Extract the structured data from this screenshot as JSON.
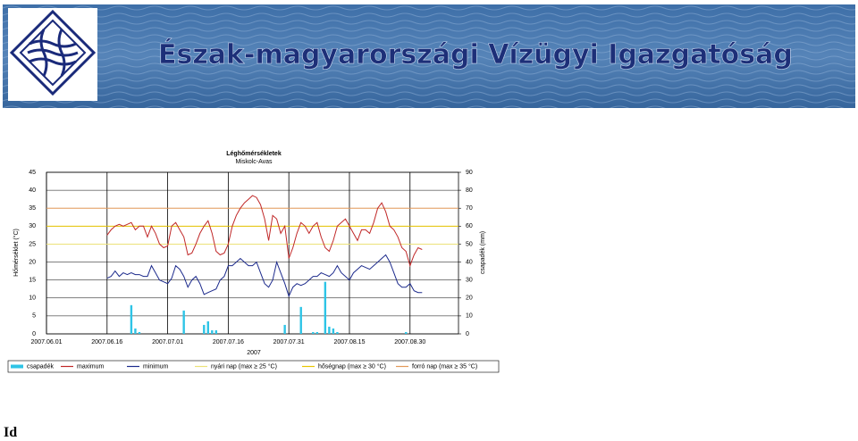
{
  "header": {
    "title": "Észak-magyarországi Vízügyi Igazgatóság"
  },
  "chart_data": {
    "type": "combo",
    "title": "Léghőmérsékletek",
    "subtitle": "Miskolc-Avas",
    "ylabel": "Hőmérséklet (°C)",
    "y2label": "csapadék (mm)",
    "xlabel": "2007",
    "xlim": [
      "2007.06.01",
      "2007.09.11"
    ],
    "xticks": [
      "2007.06.01",
      "2007.06.16",
      "2007.07.01",
      "2007.07.16",
      "2007.07.31",
      "2007.08.15",
      "2007.08.30"
    ],
    "ylim": [
      0,
      45
    ],
    "yticks": [
      0,
      5,
      10,
      15,
      20,
      25,
      30,
      35,
      40,
      45
    ],
    "y2lim": [
      0,
      90
    ],
    "y2ticks": [
      0,
      10,
      20,
      30,
      40,
      50,
      60,
      70,
      80,
      90
    ],
    "grid": true,
    "series": [
      {
        "name": "csapadék",
        "color": "#2ec4e6",
        "type": "bar",
        "axis": "y2",
        "x": [
          "2007.06.22",
          "2007.06.23",
          "2007.06.24",
          "2007.07.05",
          "2007.07.10",
          "2007.07.11",
          "2007.07.12",
          "2007.07.13",
          "2007.07.30",
          "2007.08.03",
          "2007.08.06",
          "2007.08.07",
          "2007.08.09",
          "2007.08.10",
          "2007.08.11",
          "2007.08.12",
          "2007.08.29"
        ],
        "values": [
          16,
          3,
          1,
          13,
          5,
          7,
          2,
          2,
          5,
          15,
          1,
          1,
          29,
          4,
          3,
          1,
          1
        ]
      },
      {
        "name": "maximum",
        "color": "#c02828",
        "type": "line",
        "x": [
          "2007.06.16",
          "2007.06.17",
          "2007.06.18",
          "2007.06.19",
          "2007.06.20",
          "2007.06.21",
          "2007.06.22",
          "2007.06.23",
          "2007.06.24",
          "2007.06.25",
          "2007.06.26",
          "2007.06.27",
          "2007.06.28",
          "2007.06.29",
          "2007.06.30",
          "2007.07.01",
          "2007.07.02",
          "2007.07.03",
          "2007.07.04",
          "2007.07.05",
          "2007.07.06",
          "2007.07.07",
          "2007.07.08",
          "2007.07.09",
          "2007.07.10",
          "2007.07.11",
          "2007.07.12",
          "2007.07.13",
          "2007.07.14",
          "2007.07.15",
          "2007.07.16",
          "2007.07.17",
          "2007.07.18",
          "2007.07.19",
          "2007.07.20",
          "2007.07.21",
          "2007.07.22",
          "2007.07.23",
          "2007.07.24",
          "2007.07.25",
          "2007.07.26",
          "2007.07.27",
          "2007.07.28",
          "2007.07.29",
          "2007.07.30",
          "2007.07.31",
          "2007.08.01",
          "2007.08.02",
          "2007.08.03",
          "2007.08.04",
          "2007.08.05",
          "2007.08.06",
          "2007.08.07",
          "2007.08.08",
          "2007.08.09",
          "2007.08.10",
          "2007.08.11",
          "2007.08.12",
          "2007.08.13",
          "2007.08.14",
          "2007.08.15",
          "2007.08.16",
          "2007.08.17",
          "2007.08.18",
          "2007.08.19",
          "2007.08.20",
          "2007.08.21",
          "2007.08.22",
          "2007.08.23",
          "2007.08.24",
          "2007.08.25",
          "2007.08.26",
          "2007.08.27",
          "2007.08.28",
          "2007.08.29",
          "2007.08.30",
          "2007.08.31",
          "2007.09.01",
          "2007.09.02"
        ],
        "values": [
          27.5,
          29,
          30,
          30.5,
          30,
          30.5,
          31,
          29,
          30,
          30,
          27,
          30,
          28,
          25,
          24,
          24.5,
          30,
          31,
          29,
          27,
          22,
          22.5,
          25,
          28,
          30,
          31.5,
          28,
          23,
          22,
          22.5,
          25,
          30,
          33,
          35,
          36.5,
          37.5,
          38.5,
          38,
          36,
          32,
          26,
          33,
          32,
          28,
          30,
          21,
          24,
          28,
          31,
          30,
          28,
          30,
          31,
          27,
          24,
          23,
          26,
          30,
          31,
          32,
          30,
          28,
          26,
          29,
          29,
          28,
          31,
          35,
          36.5,
          34,
          30,
          29,
          27,
          24,
          23,
          19,
          22,
          24,
          23.5
        ]
      },
      {
        "name": "minimum",
        "color": "#1c2a8c",
        "type": "line",
        "x": [
          "2007.06.16",
          "2007.06.17",
          "2007.06.18",
          "2007.06.19",
          "2007.06.20",
          "2007.06.21",
          "2007.06.22",
          "2007.06.23",
          "2007.06.24",
          "2007.06.25",
          "2007.06.26",
          "2007.06.27",
          "2007.06.28",
          "2007.06.29",
          "2007.06.30",
          "2007.07.01",
          "2007.07.02",
          "2007.07.03",
          "2007.07.04",
          "2007.07.05",
          "2007.07.06",
          "2007.07.07",
          "2007.07.08",
          "2007.07.09",
          "2007.07.10",
          "2007.07.11",
          "2007.07.12",
          "2007.07.13",
          "2007.07.14",
          "2007.07.15",
          "2007.07.16",
          "2007.07.17",
          "2007.07.18",
          "2007.07.19",
          "2007.07.20",
          "2007.07.21",
          "2007.07.22",
          "2007.07.23",
          "2007.07.24",
          "2007.07.25",
          "2007.07.26",
          "2007.07.27",
          "2007.07.28",
          "2007.07.29",
          "2007.07.30",
          "2007.07.31",
          "2007.08.01",
          "2007.08.02",
          "2007.08.03",
          "2007.08.04",
          "2007.08.05",
          "2007.08.06",
          "2007.08.07",
          "2007.08.08",
          "2007.08.09",
          "2007.08.10",
          "2007.08.11",
          "2007.08.12",
          "2007.08.13",
          "2007.08.14",
          "2007.08.15",
          "2007.08.16",
          "2007.08.17",
          "2007.08.18",
          "2007.08.19",
          "2007.08.20",
          "2007.08.21",
          "2007.08.22",
          "2007.08.23",
          "2007.08.24",
          "2007.08.25",
          "2007.08.26",
          "2007.08.27",
          "2007.08.28",
          "2007.08.29",
          "2007.08.30",
          "2007.08.31",
          "2007.09.01",
          "2007.09.02"
        ],
        "values": [
          15.5,
          16,
          17.5,
          16,
          17,
          16.5,
          17,
          16.5,
          16.5,
          16,
          16,
          19,
          17,
          15,
          14.5,
          14,
          15.5,
          19,
          18,
          16,
          13,
          15,
          16,
          14,
          11,
          11.5,
          12,
          12.5,
          15,
          16,
          19,
          19,
          20,
          21,
          20,
          19,
          19,
          20,
          17,
          14,
          13,
          15,
          20,
          17,
          14,
          10.5,
          13,
          14,
          13.5,
          14,
          15,
          16,
          16,
          17,
          16.5,
          16,
          17,
          19,
          17,
          16,
          15,
          17,
          18,
          19,
          18.5,
          18,
          19,
          20,
          21,
          22,
          20,
          17,
          14,
          13,
          13,
          14,
          12,
          11.5,
          11.5
        ]
      }
    ],
    "thresholds": [
      {
        "name": "nyári nap (max ≥ 25 °C)",
        "color": "#ece27a",
        "value": 25
      },
      {
        "name": "hőségnap (max ≥ 30 °C)",
        "color": "#e8c600",
        "value": 30
      },
      {
        "name": "forró nap (max ≥ 35 °C)",
        "color": "#e39a5a",
        "value": 35
      }
    ]
  },
  "footer": {
    "text": "Id"
  }
}
